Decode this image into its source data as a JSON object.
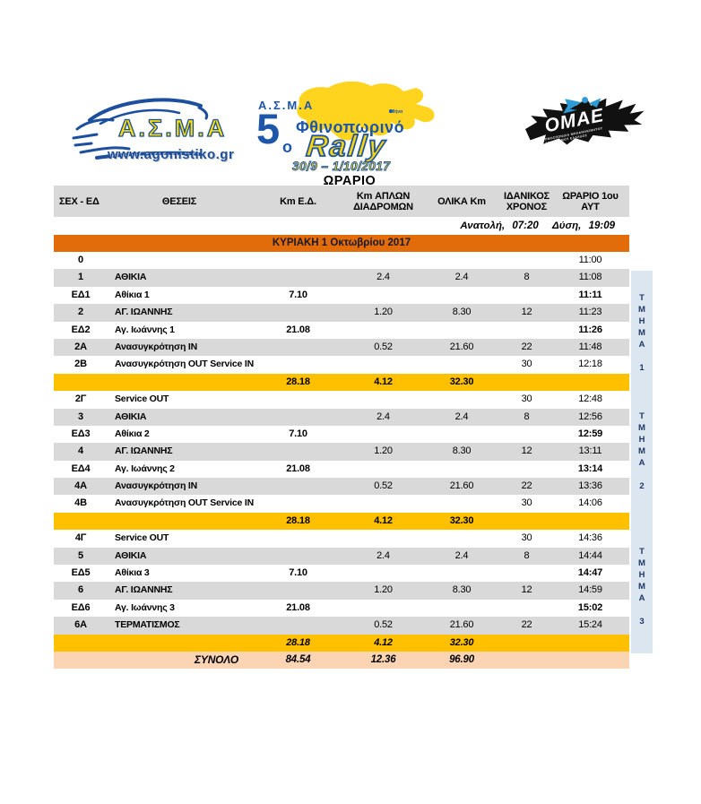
{
  "page": {
    "title": "ΩΡΑΡΙΟ"
  },
  "logos": {
    "asma": {
      "wordmark": "Α.Σ.Μ.Α",
      "url": "www.agonistiko.gr"
    },
    "event": {
      "club": "Α.Σ.Μ.Α",
      "edition_number": "5",
      "edition_suffix": "ο",
      "season": "Φθινοπωρινό",
      "rally_word": "Rally",
      "dates": "30/9 – 1/10/2017",
      "map_label": "Αθήνα"
    },
    "omae": {
      "name": "ΟΜΑΕ",
      "subtitle_line1": "ΟΜΟΣΠΟΝΔΙΑ ΜΗΧΑΝΟΚΙΝΗΤΟΥ",
      "subtitle_line2": "ΑΘΛΗΤΙΣΜΟΥ ΕΛΛΑΔΟΣ"
    }
  },
  "colors": {
    "accent_orange": "#e36c0a",
    "summary_yellow": "#ffc000",
    "total_peach": "#fbd4b4",
    "stripe_gray": "#d9d9d9",
    "section_strip_blue": "#dce6f1",
    "brand_blue": "#1d4f9e",
    "brand_yellow": "#ffd500"
  },
  "table": {
    "headers": [
      "ΣΕΧ - ΕΔ",
      "ΘΕΣΕΙΣ",
      "Km Ε.Δ.",
      "Km ΑΠΛΩΝ\nΔΙΑΔΡΟΜΩΝ",
      "ΟΛΙΚΑ Km",
      "ΙΔΑΝΙΚΟΣ\nΧΡΟΝΟΣ",
      "ΩΡΑΡΙΟ 1ου\nΑΥΤ"
    ],
    "sun_times": {
      "sunrise_label": "Ανατολή,",
      "sunrise": "07:20",
      "sunset_label": "Δύση,",
      "sunset": "19:09"
    },
    "day_banner": "ΚΥΡΙΑΚΗ 1 Οκτωβρίου 2017",
    "rows": [
      {
        "c0": "0",
        "c1": "",
        "c2": "",
        "c3": "",
        "c4": "",
        "c5": "",
        "c6": "11:00",
        "variant": "plain"
      },
      {
        "c0": "1",
        "c1": "ΑΘΙΚΙΑ",
        "c2": "",
        "c3": "2.4",
        "c4": "2.4",
        "c5": "8",
        "c6": "11:08",
        "variant": "shade"
      },
      {
        "c0": "ΕΔ1",
        "c1": "Αθίκια 1",
        "c2": "7.10",
        "c3": "",
        "c4": "",
        "c5": "",
        "c6": "11:11",
        "variant": "stage"
      },
      {
        "c0": "2",
        "c1": "ΑΓ. ΙΩΑΝΝΗΣ",
        "c2": "",
        "c3": "1.20",
        "c4": "8.30",
        "c5": "12",
        "c6": "11:23",
        "variant": "shade"
      },
      {
        "c0": "ΕΔ2",
        "c1": "Αγ. Ιωάννης 1",
        "c2": "21.08",
        "c3": "",
        "c4": "",
        "c5": "",
        "c6": "11:26",
        "variant": "stage"
      },
      {
        "c0": "2Α",
        "c1": "Ανασυγκρότηση IN",
        "c2": "",
        "c3": "0.52",
        "c4": "21.60",
        "c5": "22",
        "c6": "11:48",
        "variant": "shade"
      },
      {
        "c0": "2Β",
        "c1": "Ανασυγκρότηση OUT Service IN",
        "c2": "",
        "c3": "",
        "c4": "",
        "c5": "30",
        "c6": "12:18",
        "variant": "plain"
      },
      {
        "c0": "",
        "c1": "",
        "c2": "28.18",
        "c3": "4.12",
        "c4": "32.30",
        "c5": "",
        "c6": "",
        "variant": "sum"
      },
      {
        "c0": "2Γ",
        "c1": "Service OUT",
        "c2": "",
        "c3": "",
        "c4": "",
        "c5": "30",
        "c6": "12:48",
        "variant": "plain"
      },
      {
        "c0": "3",
        "c1": "ΑΘΙΚΙΑ",
        "c2": "",
        "c3": "2.4",
        "c4": "2.4",
        "c5": "8",
        "c6": "12:56",
        "variant": "shade"
      },
      {
        "c0": "ΕΔ3",
        "c1": "Αθίκια 2",
        "c2": "7.10",
        "c3": "",
        "c4": "",
        "c5": "",
        "c6": "12:59",
        "variant": "stage"
      },
      {
        "c0": "4",
        "c1": "ΑΓ. ΙΩΑΝΝΗΣ",
        "c2": "",
        "c3": "1.20",
        "c4": "8.30",
        "c5": "12",
        "c6": "13:11",
        "variant": "shade"
      },
      {
        "c0": "ΕΔ4",
        "c1": "Αγ. Ιωάννης 2",
        "c2": "21.08",
        "c3": "",
        "c4": "",
        "c5": "",
        "c6": "13:14",
        "variant": "stage"
      },
      {
        "c0": "4Α",
        "c1": "Ανασυγκρότηση IN",
        "c2": "",
        "c3": "0.52",
        "c4": "21.60",
        "c5": "22",
        "c6": "13:36",
        "variant": "shade"
      },
      {
        "c0": "4Β",
        "c1": "Ανασυγκρότηση OUT Service IN",
        "c2": "",
        "c3": "",
        "c4": "",
        "c5": "30",
        "c6": "14:06",
        "variant": "plain"
      },
      {
        "c0": "",
        "c1": "",
        "c2": "28.18",
        "c3": "4.12",
        "c4": "32.30",
        "c5": "",
        "c6": "",
        "variant": "sum"
      },
      {
        "c0": "4Γ",
        "c1": "Service OUT",
        "c2": "",
        "c3": "",
        "c4": "",
        "c5": "30",
        "c6": "14:36",
        "variant": "plain"
      },
      {
        "c0": "5",
        "c1": "ΑΘΙΚΙΑ",
        "c2": "",
        "c3": "2.4",
        "c4": "2.4",
        "c5": "8",
        "c6": "14:44",
        "variant": "shade"
      },
      {
        "c0": "ΕΔ5",
        "c1": "Αθίκια 3",
        "c2": "7.10",
        "c3": "",
        "c4": "",
        "c5": "",
        "c6": "14:47",
        "variant": "stage"
      },
      {
        "c0": "6",
        "c1": "ΑΓ. ΙΩΑΝΝΗΣ",
        "c2": "",
        "c3": "1.20",
        "c4": "8.30",
        "c5": "12",
        "c6": "14:59",
        "variant": "shade"
      },
      {
        "c0": "ΕΔ6",
        "c1": "Αγ. Ιωάννης 3",
        "c2": "21.08",
        "c3": "",
        "c4": "",
        "c5": "",
        "c6": "15:02",
        "variant": "stage"
      },
      {
        "c0": "6Α",
        "c1": "ΤΕΡΜΑΤΙΣΜΟΣ",
        "c2": "",
        "c3": "0.52",
        "c4": "21.60",
        "c5": "22",
        "c6": "15:24",
        "variant": "shade"
      },
      {
        "c0": "",
        "c1": "",
        "c2": "28.18",
        "c3": "4.12",
        "c4": "32.30",
        "c5": "",
        "c6": "",
        "variant": "sum-italic"
      },
      {
        "c0": "",
        "c1": "ΣΥΝΟΛΟ",
        "c2": "84.54",
        "c3": "12.36",
        "c4": "96.90",
        "c5": "",
        "c6": "",
        "variant": "total"
      }
    ],
    "sections": [
      {
        "label": "ΤΜΗΜΑ",
        "number": "1"
      },
      {
        "label": "ΤΜΗΜΑ",
        "number": "2"
      },
      {
        "label": "ΤΜΗΜΑ",
        "number": "3"
      }
    ]
  }
}
